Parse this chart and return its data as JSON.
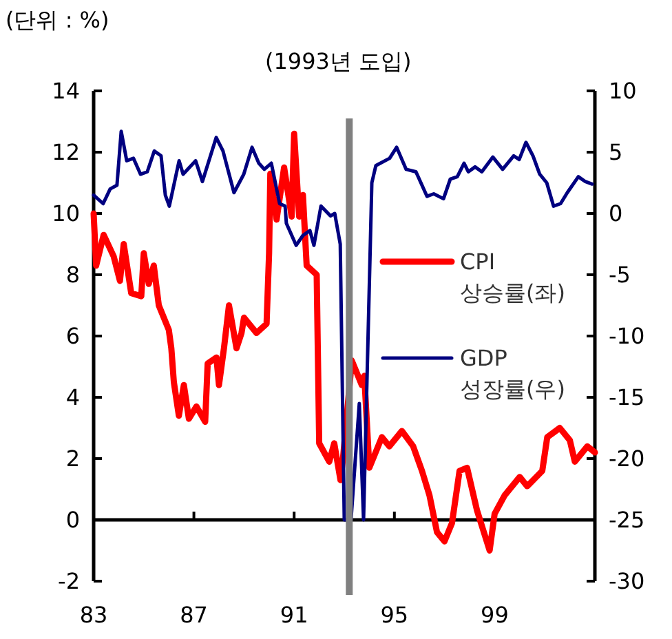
{
  "chart_data": {
    "type": "line",
    "annotations": [
      "(단위 : %)"
    ],
    "xlim": [
      1983,
      2003
    ],
    "xticks": [
      {
        "value": 1983,
        "label": "83"
      },
      {
        "value": 1987,
        "label": "87"
      },
      {
        "value": 1991,
        "label": "91"
      },
      {
        "value": 1995,
        "label": "95"
      },
      {
        "value": 1999,
        "label": "99"
      }
    ],
    "ylim": [
      -2,
      14
    ],
    "yticks": [
      -2,
      0,
      2,
      4,
      6,
      8,
      10,
      12,
      14
    ],
    "y2lim": [
      -30,
      10
    ],
    "y2ticks": [
      -30,
      -25,
      -20,
      -15,
      -10,
      -5,
      0,
      5,
      10
    ],
    "legend": "right",
    "line_style": "solid",
    "marker": "none",
    "ref_lines": [
      {
        "axis": "x",
        "value": 1993.2,
        "label": "(1993년 도입)",
        "color": "#808080"
      }
    ],
    "series": [
      {
        "name": "CPI 상승률(좌)",
        "color": "#ff0000",
        "x": [
          1983.0,
          1983.1,
          1983.4,
          1983.8,
          1984.05,
          1984.2,
          1984.5,
          1984.9,
          1985.0,
          1985.2,
          1985.4,
          1985.6,
          1986.0,
          1986.1,
          1986.2,
          1986.4,
          1986.6,
          1986.8,
          1987.1,
          1987.45,
          1987.55,
          1987.9,
          1988.0,
          1988.2,
          1988.4,
          1988.7,
          1988.9,
          1989.0,
          1989.5,
          1989.9,
          1990.0,
          1990.05,
          1990.3,
          1990.6,
          1990.9,
          1991.0,
          1991.2,
          1991.35,
          1991.5,
          1991.9,
          1992.0,
          1992.4,
          1992.6,
          1992.85,
          1992.95,
          1993.3,
          1993.7,
          1993.8,
          1994.0,
          1994.5,
          1994.8,
          1995.3,
          1995.75,
          1996.1,
          1996.4,
          1996.7,
          1997.0,
          1997.3,
          1997.6,
          1997.9,
          1998.3,
          1998.8,
          1999.0,
          1999.4,
          2000.0,
          2000.3,
          2000.9,
          2001.1,
          2001.6,
          2002.0,
          2002.2,
          2002.7,
          2003.0
        ],
        "values": [
          10.0,
          8.3,
          9.3,
          8.6,
          7.8,
          9.0,
          7.4,
          7.3,
          8.7,
          7.7,
          8.3,
          7.0,
          6.2,
          5.6,
          4.5,
          3.4,
          4.4,
          3.3,
          3.7,
          3.2,
          5.1,
          5.3,
          4.4,
          5.6,
          7.0,
          5.6,
          6.1,
          6.6,
          6.1,
          6.4,
          8.7,
          11.3,
          9.8,
          11.5,
          9.9,
          12.6,
          9.9,
          10.6,
          8.3,
          8.0,
          2.5,
          1.9,
          2.5,
          1.3,
          2.0,
          5.2,
          4.4,
          4.7,
          1.7,
          2.7,
          2.4,
          2.9,
          2.4,
          1.6,
          0.8,
          -0.4,
          -0.7,
          -0.1,
          1.6,
          1.7,
          0.3,
          -1.0,
          0.2,
          0.8,
          1.4,
          1.1,
          1.6,
          2.7,
          3.0,
          2.6,
          1.9,
          2.4,
          2.2
        ]
      },
      {
        "name": "GDP 성장률(우)",
        "color": "#000080",
        "axis": "y2",
        "x": [
          1983.0,
          1983.38,
          1983.66,
          1983.93,
          1984.1,
          1984.32,
          1984.59,
          1984.87,
          1985.14,
          1985.42,
          1985.69,
          1985.86,
          1986.02,
          1986.41,
          1986.57,
          1987.07,
          1987.34,
          1987.89,
          1988.16,
          1988.6,
          1988.99,
          1989.32,
          1989.59,
          1989.81,
          1990.09,
          1990.42,
          1990.64,
          1990.69,
          1991.08,
          1991.35,
          1991.63,
          1991.79,
          1992.07,
          1992.45,
          1992.62,
          1992.84,
          1993.0,
          1993.27,
          1993.6,
          1993.77,
          1994.1,
          1994.26,
          1994.81,
          1995.09,
          1995.47,
          1995.86,
          1996.3,
          1996.57,
          1996.96,
          1997.23,
          1997.51,
          1997.78,
          1997.95,
          1998.22,
          1998.49,
          1998.93,
          1999.32,
          1999.76,
          1999.98,
          2000.25,
          2000.53,
          2000.8,
          2001.08,
          2001.35,
          2001.63,
          2001.9,
          2002.34,
          2002.62,
          2002.89
        ],
        "values": [
          1.5,
          0.8,
          2.0,
          2.3,
          6.7,
          4.3,
          4.5,
          3.2,
          3.4,
          5.1,
          4.7,
          1.5,
          0.6,
          4.3,
          3.2,
          4.3,
          2.6,
          6.2,
          5.1,
          1.7,
          3.2,
          5.4,
          4.1,
          3.6,
          4.1,
          0.8,
          0.6,
          -0.8,
          -2.6,
          -1.8,
          -1.4,
          -2.6,
          0.6,
          -0.2,
          0.0,
          -2.5,
          -25,
          -25,
          -15.5,
          -25,
          2.5,
          3.9,
          4.5,
          5.4,
          3.6,
          3.4,
          1.4,
          1.6,
          1.2,
          2.8,
          3.0,
          4.1,
          3.4,
          3.8,
          3.4,
          4.6,
          3.6,
          4.7,
          4.4,
          5.8,
          4.7,
          3.2,
          2.5,
          0.6,
          0.8,
          1.7,
          3.0,
          2.6,
          2.4
        ]
      }
    ]
  }
}
